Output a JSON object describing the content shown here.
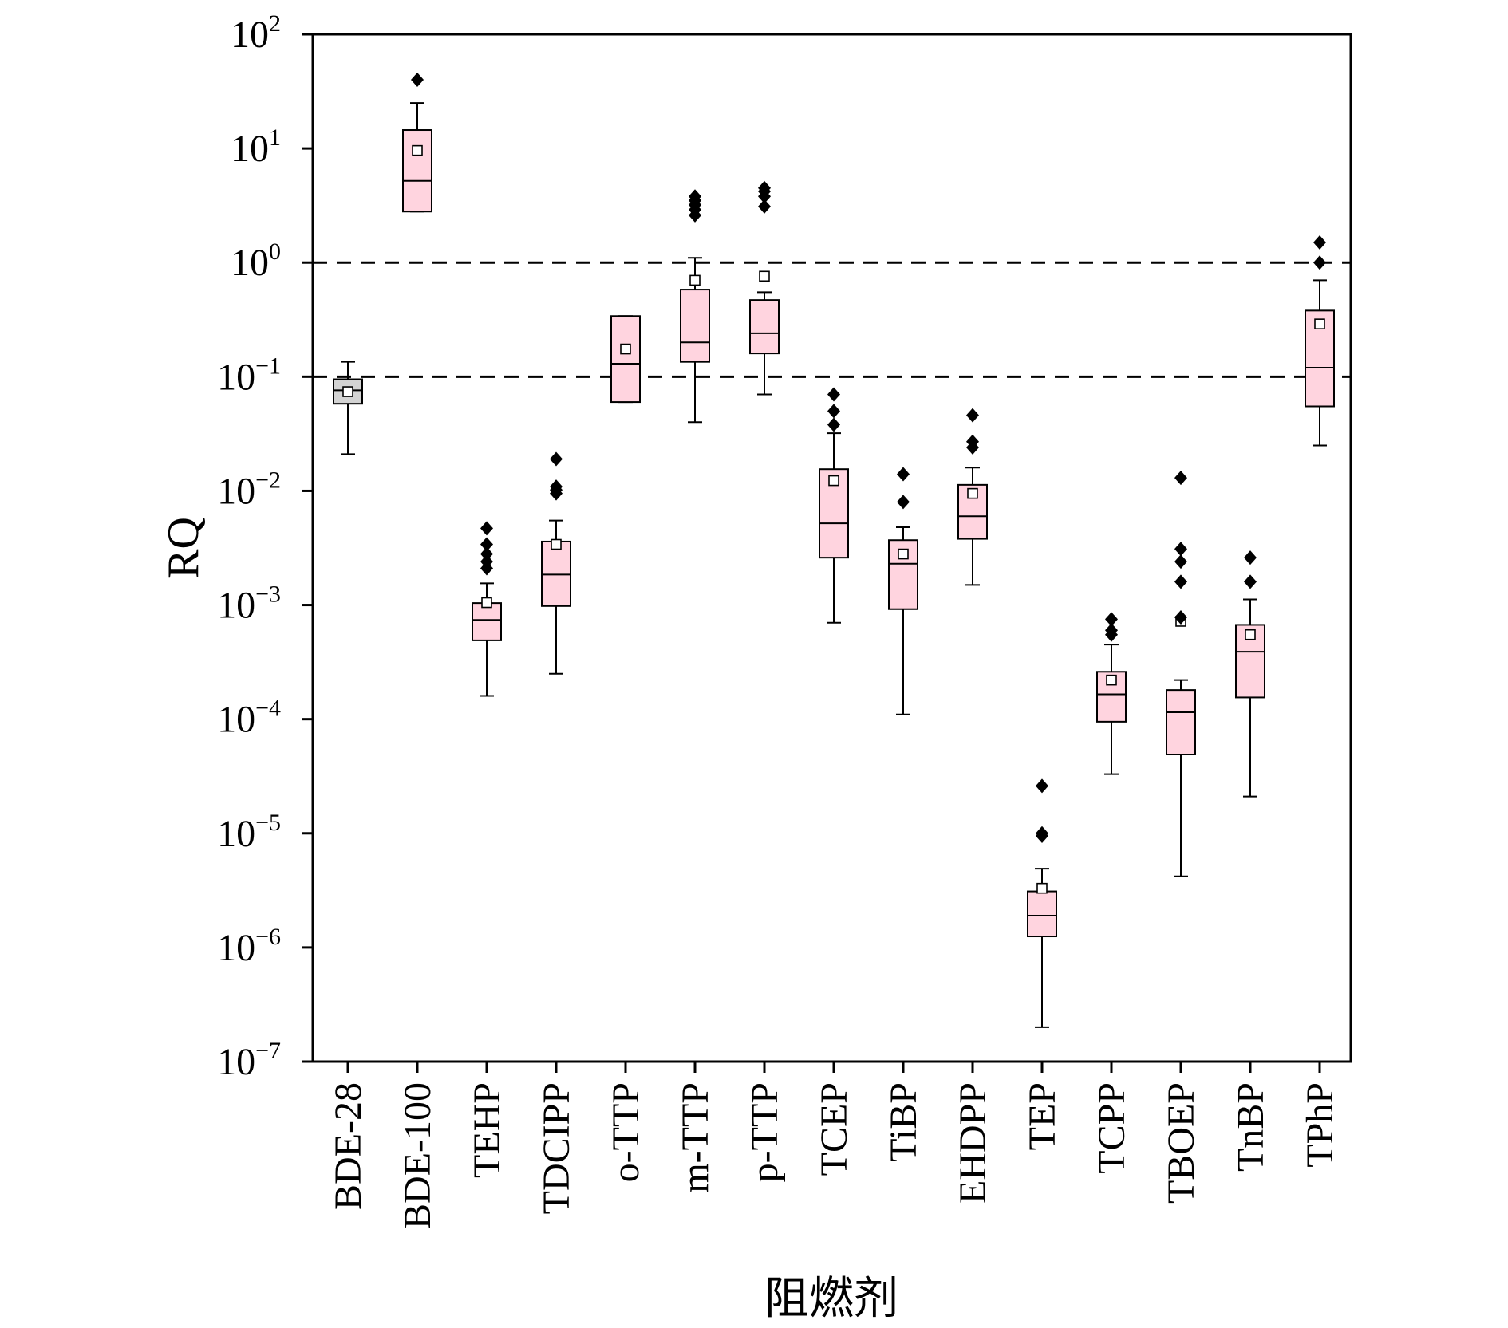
{
  "chart_data": {
    "type": "box",
    "xlabel": "阻燃剂",
    "ylabel": "RQ",
    "yscale": "log",
    "ylim": [
      1e-07,
      100
    ],
    "yticks": [
      {
        "base": "10",
        "exp": "2"
      },
      {
        "base": "10",
        "exp": "1"
      },
      {
        "base": "10",
        "exp": "0"
      },
      {
        "base": "10",
        "exp": "−1"
      },
      {
        "base": "10",
        "exp": "−2"
      },
      {
        "base": "10",
        "exp": "−3"
      },
      {
        "base": "10",
        "exp": "−4"
      },
      {
        "base": "10",
        "exp": "−5"
      },
      {
        "base": "10",
        "exp": "−6"
      },
      {
        "base": "10",
        "exp": "−7"
      }
    ],
    "reference_lines": [
      1,
      0.1
    ],
    "colors": {
      "box_fill": "#ffd4df",
      "box_fill_gray": "#d3d3d3",
      "stroke": "#000000",
      "reference_line": "#000000"
    },
    "categories": [
      "BDE-28",
      "BDE-100",
      "TEHP",
      "TDCIPP",
      "o-TTP",
      "m-TTP",
      "p-TTP",
      "TCEP",
      "TiBP",
      "EHDPP",
      "TEP",
      "TCPP",
      "TBOEP",
      "TnBP",
      "TPhP"
    ],
    "boxes": [
      {
        "name": "BDE-28",
        "whisker_low": 0.021,
        "q1": 0.058,
        "median": 0.076,
        "q3": 0.095,
        "whisker_high": 0.135,
        "mean": 0.074,
        "outliers": []
      },
      {
        "name": "BDE-100",
        "whisker_low": 2.8,
        "q1": 2.8,
        "median": 5.2,
        "q3": 14.5,
        "whisker_high": 25,
        "mean": 9.6,
        "outliers": [
          40
        ]
      },
      {
        "name": "TEHP",
        "whisker_low": 0.00016,
        "q1": 0.00049,
        "median": 0.00074,
        "q3": 0.00104,
        "whisker_high": 0.00155,
        "mean": 0.00105,
        "outliers": [
          0.0021,
          0.0024,
          0.0028,
          0.0034,
          0.0047
        ]
      },
      {
        "name": "TDCIPP",
        "whisker_low": 0.00025,
        "q1": 0.00098,
        "median": 0.00185,
        "q3": 0.0036,
        "whisker_high": 0.0055,
        "mean": 0.0034,
        "outliers": [
          0.0095,
          0.0102,
          0.0109,
          0.019
        ]
      },
      {
        "name": "o-TTP",
        "whisker_low": 0.06,
        "q1": 0.06,
        "median": 0.13,
        "q3": 0.34,
        "whisker_high": 0.34,
        "mean": 0.175,
        "outliers": []
      },
      {
        "name": "m-TTP",
        "whisker_low": 0.04,
        "q1": 0.135,
        "median": 0.2,
        "q3": 0.58,
        "whisker_high": 1.1,
        "mean": 0.7,
        "outliers": [
          2.6,
          2.9,
          3.2,
          3.5,
          3.8
        ]
      },
      {
        "name": "p-TTP",
        "whisker_low": 0.07,
        "q1": 0.16,
        "median": 0.24,
        "q3": 0.47,
        "whisker_high": 0.55,
        "mean": 0.76,
        "outliers": [
          3.1,
          3.8,
          4.2,
          4.5
        ]
      },
      {
        "name": "TCEP",
        "whisker_low": 0.0007,
        "q1": 0.0026,
        "median": 0.0052,
        "q3": 0.0155,
        "whisker_high": 0.032,
        "mean": 0.0123,
        "outliers": [
          0.038,
          0.05,
          0.07
        ]
      },
      {
        "name": "TiBP",
        "whisker_low": 0.00011,
        "q1": 0.00092,
        "median": 0.0023,
        "q3": 0.0037,
        "whisker_high": 0.0048,
        "mean": 0.0028,
        "outliers": [
          0.008,
          0.014
        ]
      },
      {
        "name": "EHDPP",
        "whisker_low": 0.0015,
        "q1": 0.0038,
        "median": 0.006,
        "q3": 0.0113,
        "whisker_high": 0.016,
        "mean": 0.0095,
        "outliers": [
          0.024,
          0.027,
          0.046
        ]
      },
      {
        "name": "TEP",
        "whisker_low": 2e-07,
        "q1": 1.25e-06,
        "median": 1.9e-06,
        "q3": 3.1e-06,
        "whisker_high": 4.9e-06,
        "mean": 3.3e-06,
        "outliers": [
          9.5e-06,
          1e-05,
          2.6e-05
        ]
      },
      {
        "name": "TCPP",
        "whisker_low": 3.3e-05,
        "q1": 9.5e-05,
        "median": 0.000165,
        "q3": 0.00026,
        "whisker_high": 0.00045,
        "mean": 0.00022,
        "outliers": [
          0.00055,
          0.0006,
          0.00075
        ]
      },
      {
        "name": "TBOEP",
        "whisker_low": 4.2e-06,
        "q1": 4.9e-05,
        "median": 0.000115,
        "q3": 0.00018,
        "whisker_high": 0.00022,
        "mean": 0.00072,
        "outliers": [
          0.00078,
          0.0016,
          0.0024,
          0.0031,
          0.013
        ]
      },
      {
        "name": "TnBP",
        "whisker_low": 2.1e-05,
        "q1": 0.000155,
        "median": 0.00039,
        "q3": 0.00067,
        "whisker_high": 0.00112,
        "mean": 0.00055,
        "outliers": [
          0.0016,
          0.0026
        ]
      },
      {
        "name": "TPhP",
        "whisker_low": 0.025,
        "q1": 0.055,
        "median": 0.12,
        "q3": 0.38,
        "whisker_high": 0.7,
        "mean": 0.29,
        "outliers": [
          1.0,
          1.5
        ]
      }
    ]
  }
}
